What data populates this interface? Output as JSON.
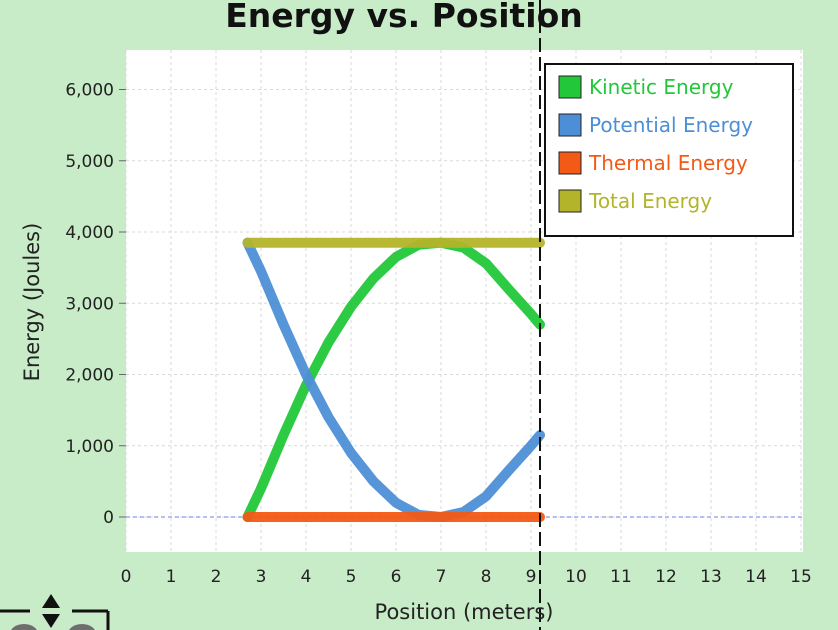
{
  "chart_data": {
    "type": "line",
    "title": "Energy vs. Position",
    "xlabel": "Position (meters)",
    "ylabel": "Energy (Joules)",
    "xlim": [
      0,
      15
    ],
    "ylim": [
      -500,
      6600
    ],
    "x_ticks": [
      "0",
      "1",
      "2",
      "3",
      "4",
      "5",
      "6",
      "7",
      "8",
      "9",
      "10",
      "11",
      "12",
      "13",
      "14",
      "15"
    ],
    "x_tick_values": [
      0,
      1,
      2,
      3,
      4,
      5,
      6,
      7,
      8,
      9,
      10,
      11,
      12,
      13,
      14,
      15
    ],
    "y_ticks": [
      "0",
      "1,000",
      "2,000",
      "3,000",
      "4,000",
      "5,000",
      "6,000"
    ],
    "y_tick_values": [
      0,
      1000,
      2000,
      3000,
      4000,
      5000,
      6000
    ],
    "grid": true,
    "legend_position": "top-right",
    "cursor_x": 9.2,
    "series": [
      {
        "name": "Kinetic Energy",
        "color": "#22c73a",
        "x": [
          2.7,
          3.0,
          3.5,
          4.0,
          4.5,
          5.0,
          5.5,
          6.0,
          6.5,
          7.0,
          7.5,
          8.0,
          8.5,
          9.0,
          9.2
        ],
        "y": [
          0,
          400,
          1150,
          1850,
          2450,
          2950,
          3350,
          3650,
          3820,
          3850,
          3780,
          3560,
          3200,
          2850,
          2700
        ]
      },
      {
        "name": "Potential Energy",
        "color": "#4d8fd6",
        "x": [
          2.7,
          3.0,
          3.5,
          4.0,
          4.5,
          5.0,
          5.5,
          6.0,
          6.5,
          7.0,
          7.5,
          8.0,
          8.5,
          9.0,
          9.2
        ],
        "y": [
          3850,
          3450,
          2700,
          2000,
          1400,
          900,
          500,
          200,
          30,
          0,
          70,
          290,
          650,
          1000,
          1150
        ]
      },
      {
        "name": "Thermal Energy",
        "color": "#f25a15",
        "x": [
          2.7,
          9.2
        ],
        "y": [
          0,
          0
        ]
      },
      {
        "name": "Total Energy",
        "color": "#b4b42a",
        "x": [
          2.7,
          9.2
        ],
        "y": [
          3850,
          3850
        ]
      }
    ]
  },
  "widget": {
    "arrow_icon": "up-down-arrow-icon"
  }
}
